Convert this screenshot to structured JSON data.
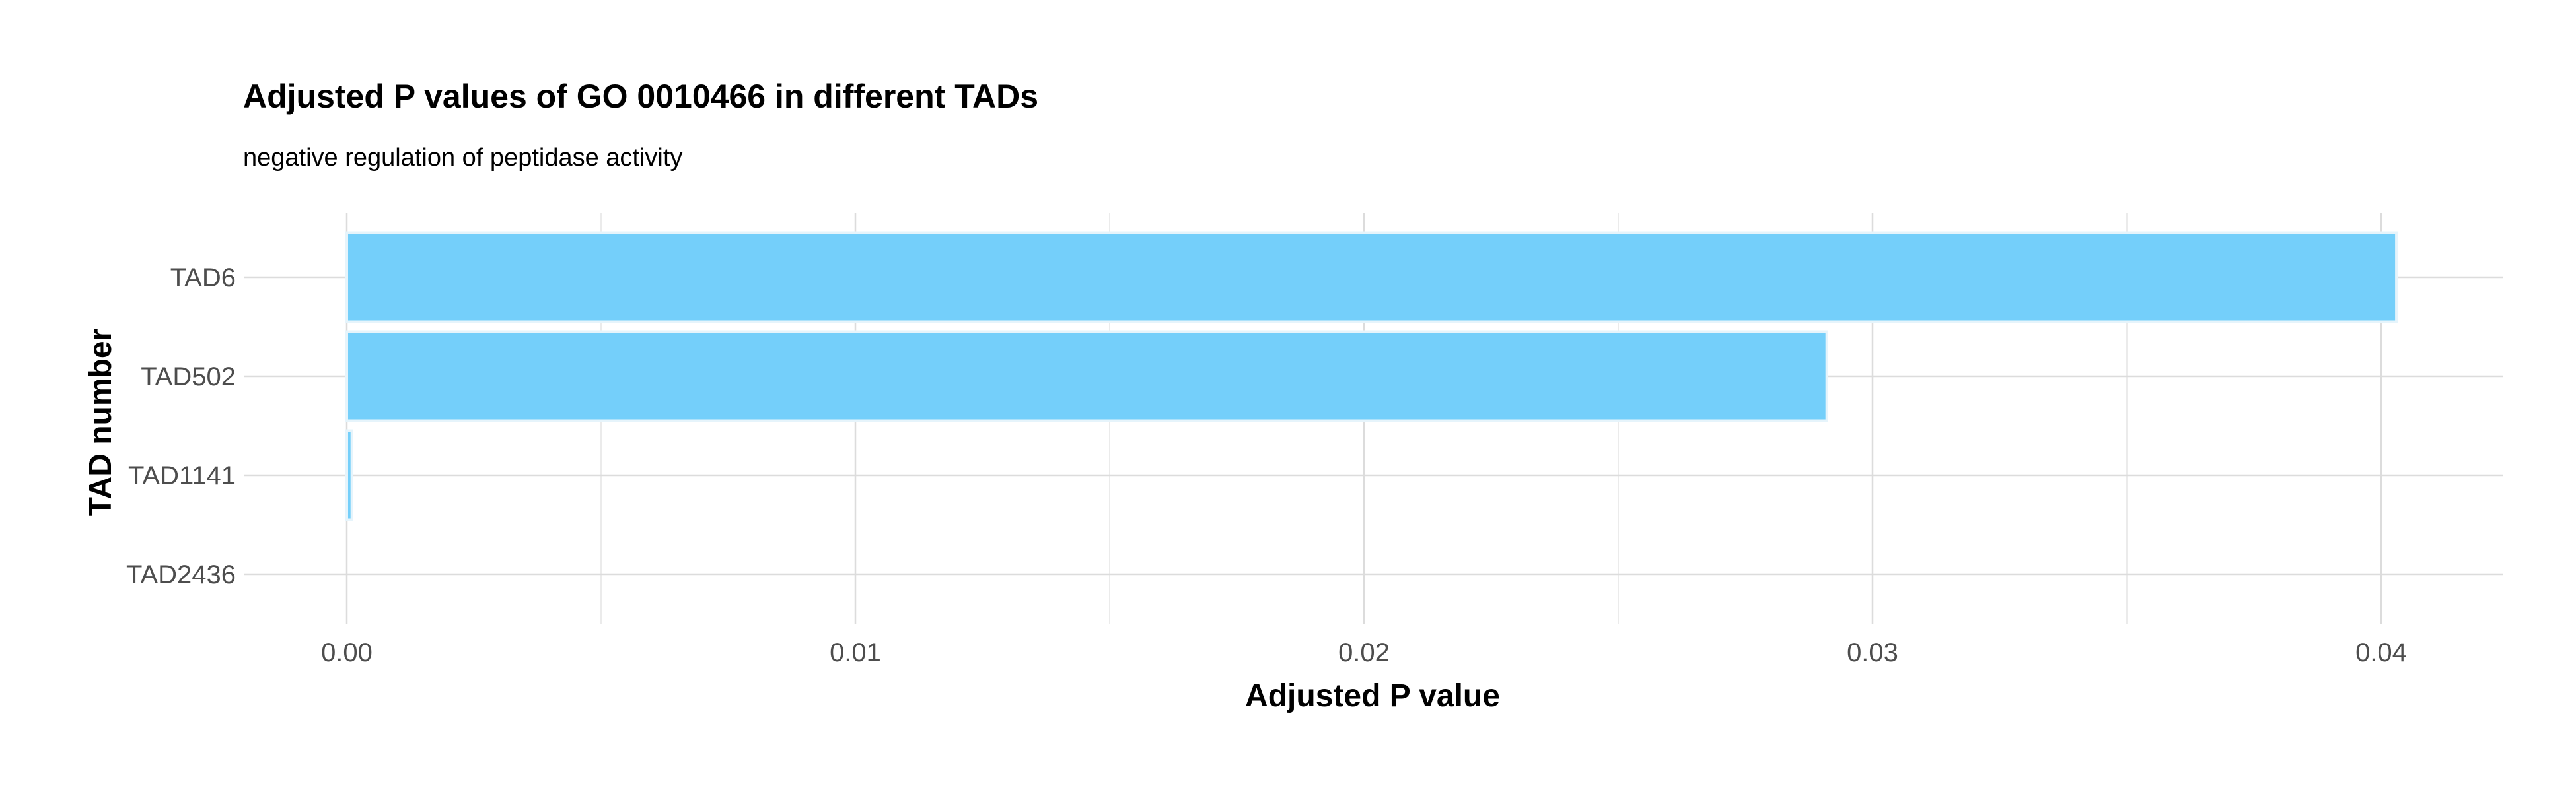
{
  "chart_data": {
    "type": "bar",
    "orientation": "horizontal",
    "title": "Adjusted P values of GO 0010466 in different TADs",
    "subtitle": "negative regulation of peptidase activity",
    "xlabel": "Adjusted P value",
    "ylabel": "TAD number",
    "categories": [
      "TAD6",
      "TAD502",
      "TAD1141",
      "TAD2436"
    ],
    "values": [
      0.0403,
      0.0291,
      0.0001,
      0.0
    ],
    "xlim": [
      -0.002,
      0.0424
    ],
    "x_ticks": [
      0.0,
      0.01,
      0.02,
      0.03,
      0.04
    ],
    "x_tick_labels": [
      "0.00",
      "0.01",
      "0.02",
      "0.03",
      "0.04"
    ],
    "grid": true,
    "legend": "none",
    "colors": {
      "bar_fill": "#74cffa",
      "bar_outline": "#e6f4fb",
      "grid": "#dcdcdc",
      "tick_text": "#4d4d4d"
    }
  }
}
